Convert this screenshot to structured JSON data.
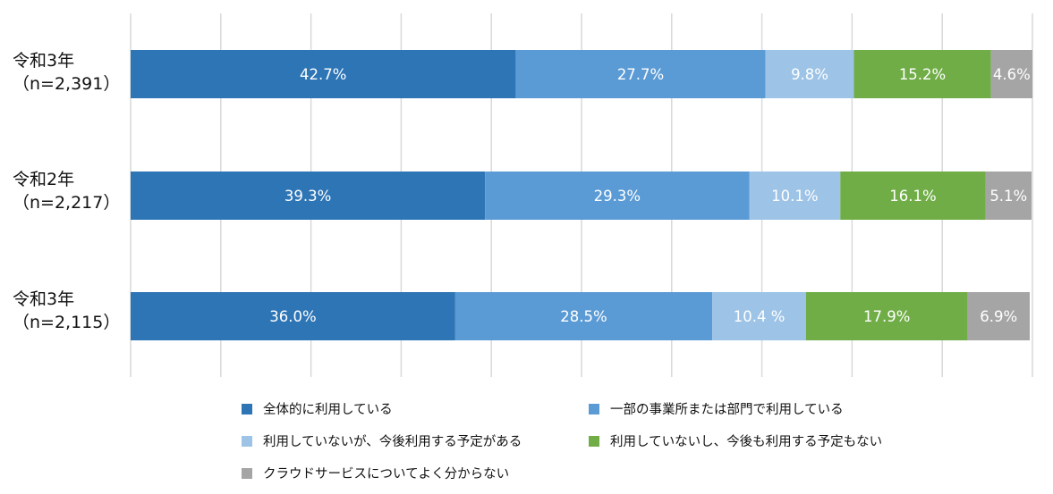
{
  "chart_data": {
    "type": "bar",
    "orientation": "horizontal",
    "stacked": true,
    "xlim": [
      0,
      100
    ],
    "grid": true,
    "legend_position": "bottom",
    "categories": [
      {
        "name": "令和3年",
        "n": "（n=2,391）"
      },
      {
        "name": "令和2年",
        "n": "（n=2,217）"
      },
      {
        "name": "令和3年",
        "n": "（n=2,115）"
      }
    ],
    "series": [
      {
        "name": "全体的に利用している",
        "color": "#2e75b6",
        "values": [
          42.7,
          39.3,
          36.0
        ],
        "labels": [
          "42.7%",
          "39.3%",
          "36.0%"
        ]
      },
      {
        "name": "一部の事業所または部門で利用している",
        "color": "#5b9bd5",
        "values": [
          27.7,
          29.3,
          28.5
        ],
        "labels": [
          "27.7%",
          "29.3%",
          "28.5%"
        ]
      },
      {
        "name": "利用していないが、今後利用する予定がある",
        "color": "#9dc3e6",
        "values": [
          9.8,
          10.1,
          10.4
        ],
        "labels": [
          "9.8%",
          "10.1%",
          "10.4 %"
        ]
      },
      {
        "name": "利用していないし、今後も利用する予定もない",
        "color": "#70ad47",
        "values": [
          15.2,
          16.1,
          17.9
        ],
        "labels": [
          "15.2%",
          "16.1%",
          "17.9%"
        ]
      },
      {
        "name": "クラウドサービスについてよく分からない",
        "color": "#a5a5a5",
        "values": [
          4.6,
          5.1,
          6.9
        ],
        "labels": [
          "4.6%",
          "5.1%",
          "6.9%"
        ]
      }
    ]
  }
}
